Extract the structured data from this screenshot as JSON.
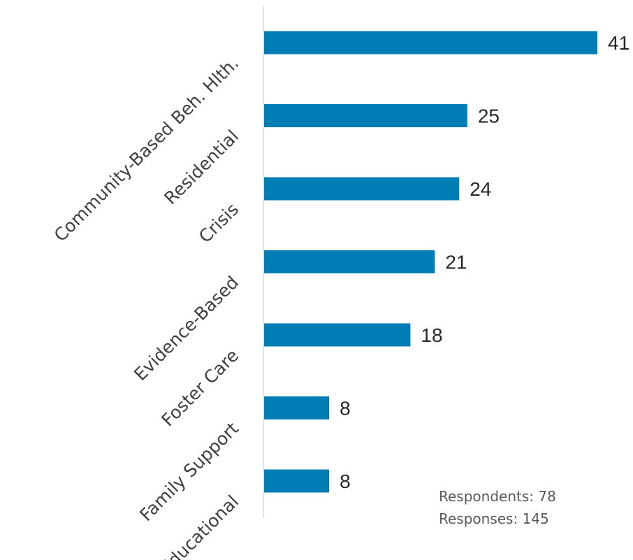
{
  "chart_data": {
    "type": "bar",
    "orientation": "horizontal",
    "categories": [
      "Community-Based Beh. Hlth.",
      "Residential",
      "Crisis",
      "Evidence-Based",
      "Foster Care",
      "Family Support",
      "Educational"
    ],
    "values": [
      41,
      25,
      24,
      21,
      18,
      8,
      8
    ],
    "title": "",
    "xlabel": "",
    "ylabel": "",
    "xlim": [
      0,
      41
    ],
    "grid": false,
    "legend": "none",
    "data_labels": true,
    "bar_color": "#007DB5",
    "axis_color": "#D9D9D9",
    "annotations": [
      "Respondents: 78",
      "Responses: 145"
    ]
  }
}
